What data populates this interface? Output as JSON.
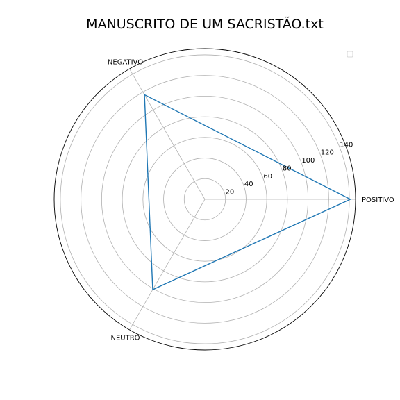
{
  "chart_data": {
    "type": "radar",
    "title": "MANUSCRITO DE UM SACRISTÃO.txt",
    "categories": [
      "POSITIVO",
      "NEGATIVO",
      "NEUTRO"
    ],
    "series": [
      {
        "values": [
          141,
          117,
          101
        ]
      }
    ],
    "radial_ticks": [
      "20",
      "40",
      "60",
      "80",
      "100",
      "120",
      "140"
    ],
    "rlim": [
      0,
      146
    ],
    "grid": true,
    "legend": "top-right",
    "colors": {
      "series": "#1f77b4",
      "grid": "#b0b0b0",
      "frame": "#000000"
    }
  }
}
